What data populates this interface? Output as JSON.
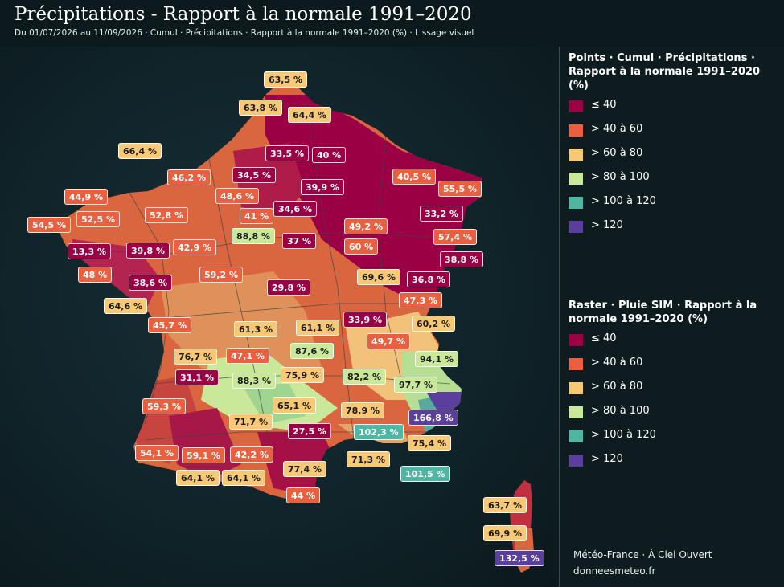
{
  "header": {
    "title": "Précipitations - Rapport à la normale 1991–2020",
    "subtitle": "Du 01/07/2026 au 11/09/2026 · Cumul · Précipitations · Rapport à la normale 1991–2020 (%) · Lissage visuel"
  },
  "colors": {
    "le40": "#9b0045",
    "c40_60": "#e8603f",
    "c60_80": "#f7c977",
    "c80_100": "#c9e89a",
    "c100_120": "#4fb6a3",
    "gt120": "#5a3f9c",
    "background": "#0e1c20"
  },
  "legend_points": {
    "title": "Points · Cumul · Précipitations · Rapport à la normale 1991–2020 (%)",
    "items": [
      {
        "label": "≤ 40",
        "color": "#9b0045"
      },
      {
        "label": "> 40 à 60",
        "color": "#e8603f"
      },
      {
        "label": "> 60 à 80",
        "color": "#f7c977"
      },
      {
        "label": "> 80 à 100",
        "color": "#c9e89a"
      },
      {
        "label": "> 100 à 120",
        "color": "#4fb6a3"
      },
      {
        "label": "> 120",
        "color": "#5a3f9c"
      }
    ]
  },
  "legend_raster": {
    "title": "Raster · Pluie SIM · Rapport à la normale 1991–2020 (%)",
    "items": [
      {
        "label": "≤ 40",
        "color": "#9b0045"
      },
      {
        "label": "> 40 à 60",
        "color": "#e8603f"
      },
      {
        "label": "> 60 à 80",
        "color": "#f7c977"
      },
      {
        "label": "> 80 à 100",
        "color": "#c9e89a"
      },
      {
        "label": "> 100 à 120",
        "color": "#4fb6a3"
      },
      {
        "label": "> 120",
        "color": "#5a3f9c"
      }
    ]
  },
  "credits": {
    "source": "Météo-France · À Ciel Ouvert",
    "site": "donneesmeteo.fr"
  },
  "stations": [
    {
      "text": "63,5 %",
      "value": 63.5
    },
    {
      "text": "63,8 %",
      "value": 63.8
    },
    {
      "text": "64,4 %",
      "value": 64.4
    },
    {
      "text": "66,4 %",
      "value": 66.4
    },
    {
      "text": "33,5 %",
      "value": 33.5
    },
    {
      "text": "40 %",
      "value": 40
    },
    {
      "text": "46,2 %",
      "value": 46.2
    },
    {
      "text": "34,5 %",
      "value": 34.5
    },
    {
      "text": "40,5 %",
      "value": 40.5
    },
    {
      "text": "44,9 %",
      "value": 44.9
    },
    {
      "text": "39,9 %",
      "value": 39.9
    },
    {
      "text": "48,6 %",
      "value": 48.6
    },
    {
      "text": "55,5 %",
      "value": 55.5
    },
    {
      "text": "52,5 %",
      "value": 52.5
    },
    {
      "text": "52,8 %",
      "value": 52.8
    },
    {
      "text": "34,6 %",
      "value": 34.6
    },
    {
      "text": "41 %",
      "value": 41
    },
    {
      "text": "33,2 %",
      "value": 33.2
    },
    {
      "text": "54,5 %",
      "value": 54.5
    },
    {
      "text": "49,2 %",
      "value": 49.2
    },
    {
      "text": "88,8 %",
      "value": 88.8
    },
    {
      "text": "57,4 %",
      "value": 57.4
    },
    {
      "text": "37 %",
      "value": 37
    },
    {
      "text": "13,3 %",
      "value": 13.3
    },
    {
      "text": "39,8 %",
      "value": 39.8
    },
    {
      "text": "42,9 %",
      "value": 42.9
    },
    {
      "text": "60 %",
      "value": 60
    },
    {
      "text": "38,8 %",
      "value": 38.8
    },
    {
      "text": "48 %",
      "value": 48
    },
    {
      "text": "59,2 %",
      "value": 59.2
    },
    {
      "text": "69,6 %",
      "value": 69.6
    },
    {
      "text": "36,8 %",
      "value": 36.8
    },
    {
      "text": "38,6 %",
      "value": 38.6
    },
    {
      "text": "29,8 %",
      "value": 29.8
    },
    {
      "text": "64,6 %",
      "value": 64.6
    },
    {
      "text": "47,3 %",
      "value": 47.3
    },
    {
      "text": "33,9 %",
      "value": 33.9
    },
    {
      "text": "45,7 %",
      "value": 45.7
    },
    {
      "text": "61,3 %",
      "value": 61.3
    },
    {
      "text": "61,1 %",
      "value": 61.1
    },
    {
      "text": "60,2 %",
      "value": 60.2
    },
    {
      "text": "49,7 %",
      "value": 49.7
    },
    {
      "text": "87,6 %",
      "value": 87.6
    },
    {
      "text": "76,7 %",
      "value": 76.7
    },
    {
      "text": "47,1 %",
      "value": 47.1
    },
    {
      "text": "94,1 %",
      "value": 94.1
    },
    {
      "text": "31,1 %",
      "value": 31.1
    },
    {
      "text": "75,9 %",
      "value": 75.9
    },
    {
      "text": "88,3 %",
      "value": 88.3
    },
    {
      "text": "82,2 %",
      "value": 82.2
    },
    {
      "text": "97,7 %",
      "value": 97.7
    },
    {
      "text": "59,3 %",
      "value": 59.3
    },
    {
      "text": "65,1 %",
      "value": 65.1
    },
    {
      "text": "78,9 %",
      "value": 78.9
    },
    {
      "text": "166,8 %",
      "value": 166.8
    },
    {
      "text": "71,7 %",
      "value": 71.7
    },
    {
      "text": "27,5 %",
      "value": 27.5
    },
    {
      "text": "102,3 %",
      "value": 102.3
    },
    {
      "text": "75,4 %",
      "value": 75.4
    },
    {
      "text": "54,1 %",
      "value": 54.1
    },
    {
      "text": "59,1 %",
      "value": 59.1
    },
    {
      "text": "42,2 %",
      "value": 42.2
    },
    {
      "text": "71,3 %",
      "value": 71.3
    },
    {
      "text": "77,4 %",
      "value": 77.4
    },
    {
      "text": "101,5 %",
      "value": 101.5
    },
    {
      "text": "64,1 %",
      "value": 64.1
    },
    {
      "text": "64,1 %",
      "value": 64.1
    },
    {
      "text": "44 %",
      "value": 44
    },
    {
      "text": "63,7 %",
      "value": 63.7
    },
    {
      "text": "69,9 %",
      "value": 69.9
    },
    {
      "text": "132,5 %",
      "value": 132.5
    }
  ]
}
